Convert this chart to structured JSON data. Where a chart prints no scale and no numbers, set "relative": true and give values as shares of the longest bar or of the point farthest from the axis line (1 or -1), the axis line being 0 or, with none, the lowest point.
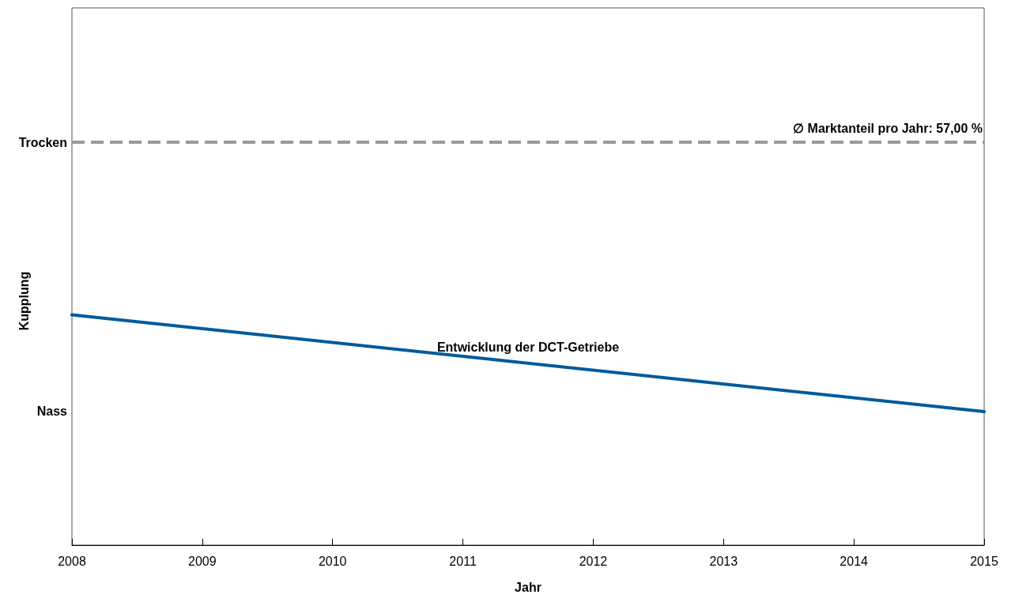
{
  "chart_data": {
    "type": "line",
    "xlabel": "Jahr",
    "ylabel": "Kupplung",
    "relative": true,
    "x": [
      2008,
      2015
    ],
    "series": [
      {
        "name": "Entwicklung der DCT-Getriebe",
        "color": "#005a9c",
        "values": [
          1,
          0.58
        ]
      }
    ],
    "xlim": [
      2008,
      2015
    ],
    "xticks": [
      2008,
      2009,
      2010,
      2011,
      2012,
      2013,
      2014,
      2015
    ],
    "ref_lines": [
      {
        "axis": "y",
        "value": 1.75,
        "label": "Trocken",
        "color": "#999999",
        "line_style": "dashed"
      }
    ],
    "annotations": [
      "∅ Marktanteil pro Jahr: 57,00 %",
      "Nass"
    ],
    "grid": false,
    "legend": false,
    "marker": "none",
    "line_style": "solid"
  }
}
